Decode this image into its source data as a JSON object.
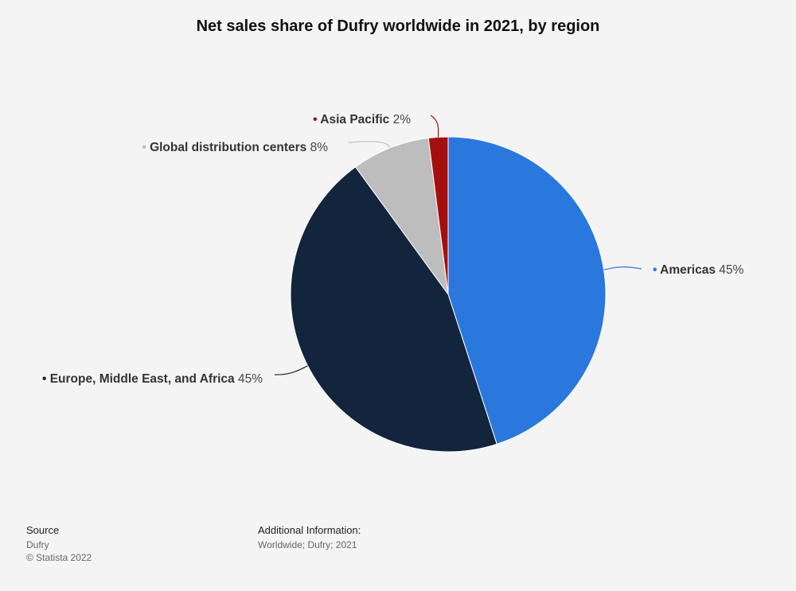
{
  "title": "Net sales share of Dufry worldwide in 2021, by region",
  "chart_data": {
    "type": "pie",
    "title": "Net sales share of Dufry worldwide in 2021, by region",
    "unit": "%",
    "slices": [
      {
        "label": "Americas",
        "value": 45,
        "color": "#2a78de"
      },
      {
        "label": "Europe, Middle East, and Africa",
        "value": 45,
        "color": "#13253c"
      },
      {
        "label": "Global distribution centers",
        "value": 8,
        "color": "#bdbdbd"
      },
      {
        "label": "Asia Pacific",
        "value": 2,
        "color": "#a50f0f"
      }
    ]
  },
  "footer": {
    "source_heading": "Source",
    "source_name": "Dufry",
    "copyright": "© Statista 2022",
    "additional_heading": "Additional Information:",
    "additional_text": "Worldwide; Dufry; 2021"
  }
}
